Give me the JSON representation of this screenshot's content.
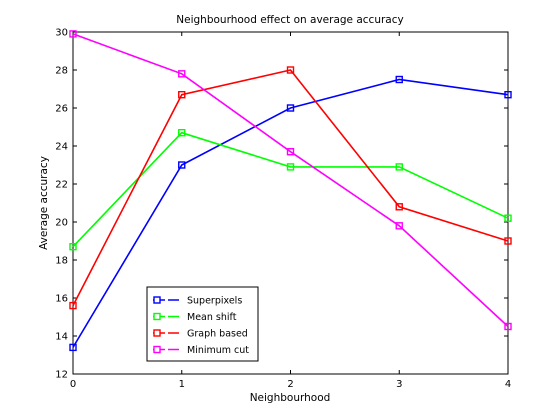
{
  "chart_data": {
    "type": "line",
    "title": "Neighbourhood effect on average accuracy",
    "xlabel": "Neighbourhood",
    "ylabel": "Average accuracy",
    "x": [
      0,
      1,
      2,
      3,
      4
    ],
    "xlim": [
      0,
      4
    ],
    "ylim": [
      12,
      30
    ],
    "xticks": [
      "0",
      "1",
      "2",
      "3",
      "4"
    ],
    "yticks": [
      "12",
      "14",
      "16",
      "18",
      "20",
      "22",
      "24",
      "26",
      "28",
      "30"
    ],
    "grid": false,
    "legend_position": "bottom-left",
    "marker": "square",
    "series": [
      {
        "name": "Superpixels",
        "color": "#0000ff",
        "values": [
          13.4,
          23.0,
          26.0,
          27.5,
          26.7
        ]
      },
      {
        "name": "Mean shift",
        "color": "#00ff00",
        "values": [
          18.7,
          24.7,
          22.9,
          22.9,
          20.2
        ]
      },
      {
        "name": "Graph based",
        "color": "#ff0000",
        "values": [
          15.6,
          26.7,
          28.0,
          20.8,
          19.0
        ]
      },
      {
        "name": "Minimum cut",
        "color": "#ff00ff",
        "values": [
          29.9,
          27.8,
          23.7,
          19.8,
          14.5
        ]
      }
    ]
  }
}
